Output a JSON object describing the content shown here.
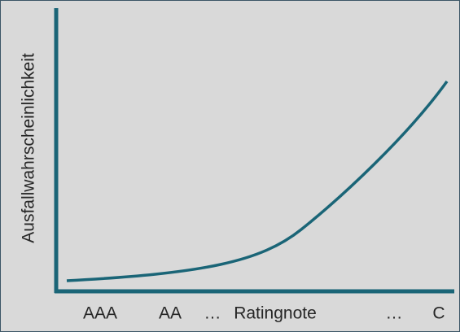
{
  "y_axis_label": "Ausfallwahrscheinlichkeit",
  "x_axis_labels": [
    "AAA",
    "AA",
    "…",
    "Ratingnote",
    "…",
    "C"
  ]
}
